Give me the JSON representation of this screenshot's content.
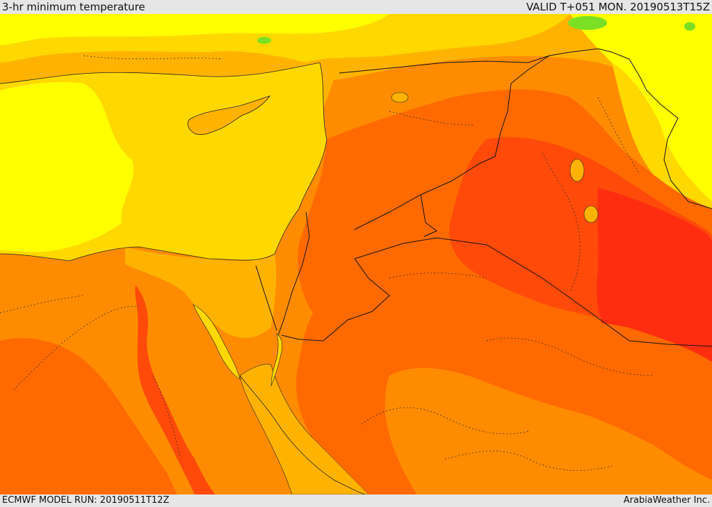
{
  "header": {
    "title": "3-hr minimum temperature",
    "valid": "VALID T+051 MON. 20190513T15Z"
  },
  "footer": {
    "model_run": "ECMWF MODEL RUN: 20190511T12Z",
    "credit": "ArabiaWeather Inc."
  },
  "map": {
    "region": "Eastern Mediterranean / Levant / northern Arabia",
    "palette": {
      "green": "#7be024",
      "yellow": "#ffff00",
      "gold": "#ffd800",
      "amber": "#ffb300",
      "orange": "#ff8c00",
      "dark_orange": "#ff6a00",
      "red_orange": "#ff4a0a",
      "red": "#ff2d10"
    }
  }
}
